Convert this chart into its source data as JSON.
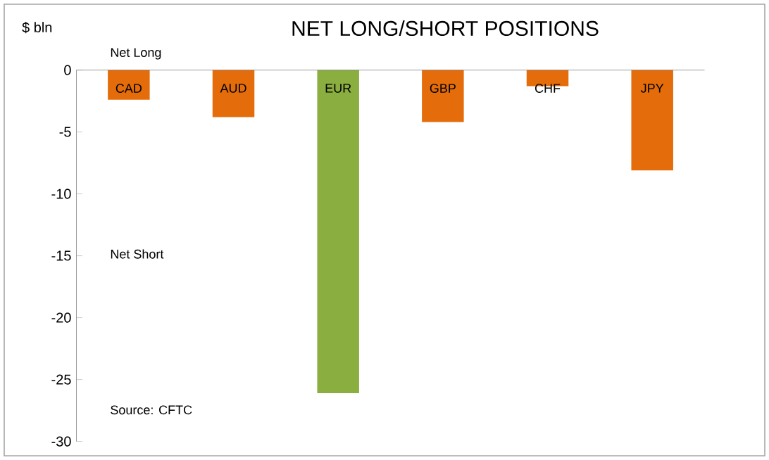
{
  "chart_data": {
    "type": "bar",
    "title": "NET LONG/SHORT POSITIONS",
    "ylabel": "$ bln",
    "categories": [
      "CAD",
      "AUD",
      "EUR",
      "GBP",
      "CHF",
      "JPY"
    ],
    "values": [
      -2.4,
      -3.8,
      -26.1,
      -4.2,
      -1.3,
      -8.1
    ],
    "colors": [
      "#e46c0a",
      "#e46c0a",
      "#8aae3f",
      "#e46c0a",
      "#e46c0a",
      "#e46c0a"
    ],
    "ylim": [
      -30,
      0
    ],
    "yticks": [
      -30,
      -25,
      -20,
      -15,
      -10,
      -5,
      0
    ],
    "annotations": [
      "Net Long",
      "Net Short",
      "Source: CFTC"
    ]
  }
}
